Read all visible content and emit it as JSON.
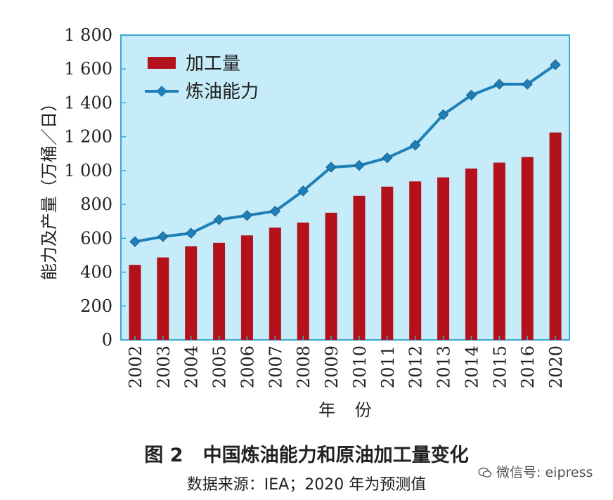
{
  "chart_data": {
    "type": "bar",
    "categories": [
      "2002",
      "2003",
      "2004",
      "2005",
      "2006",
      "2007",
      "2008",
      "2009",
      "2010",
      "2011",
      "2012",
      "2013",
      "2014",
      "2015",
      "2016",
      "2020"
    ],
    "series": [
      {
        "name": "加工量",
        "type": "bar",
        "color": "#b3121c",
        "values": [
          443,
          487,
          553,
          573,
          617,
          663,
          693,
          751,
          851,
          905,
          936,
          960,
          1012,
          1047,
          1080,
          1225
        ]
      },
      {
        "name": "炼油能力",
        "type": "line",
        "color": "#1f7fb8",
        "marker": "diamond",
        "values": [
          580,
          610,
          630,
          710,
          735,
          760,
          880,
          1020,
          1030,
          1075,
          1150,
          1330,
          1445,
          1510,
          1510,
          1625
        ]
      }
    ],
    "ylabel": "能力及产量（万桶／日）",
    "xlabel": "年  份",
    "ylim": [
      0,
      1800
    ],
    "yticks": [
      0,
      200,
      400,
      600,
      800,
      1000,
      1200,
      1400,
      1600,
      1800
    ],
    "ytick_labels": [
      "0",
      "200",
      "400",
      "600",
      "800",
      "1 000",
      "1 200",
      "1 400",
      "1 600",
      "1 800"
    ],
    "plot_background": "#c5ecf8",
    "plot_border": "#3aa9d6",
    "grid": false,
    "legend_position": "top-left"
  },
  "caption": {
    "title": "图 2   中国炼油能力和原油加工量变化",
    "source": "数据来源：IEA；2020 年为预测值"
  },
  "watermark": {
    "text": "微信号: eipress",
    "icon": "wechat-icon"
  }
}
